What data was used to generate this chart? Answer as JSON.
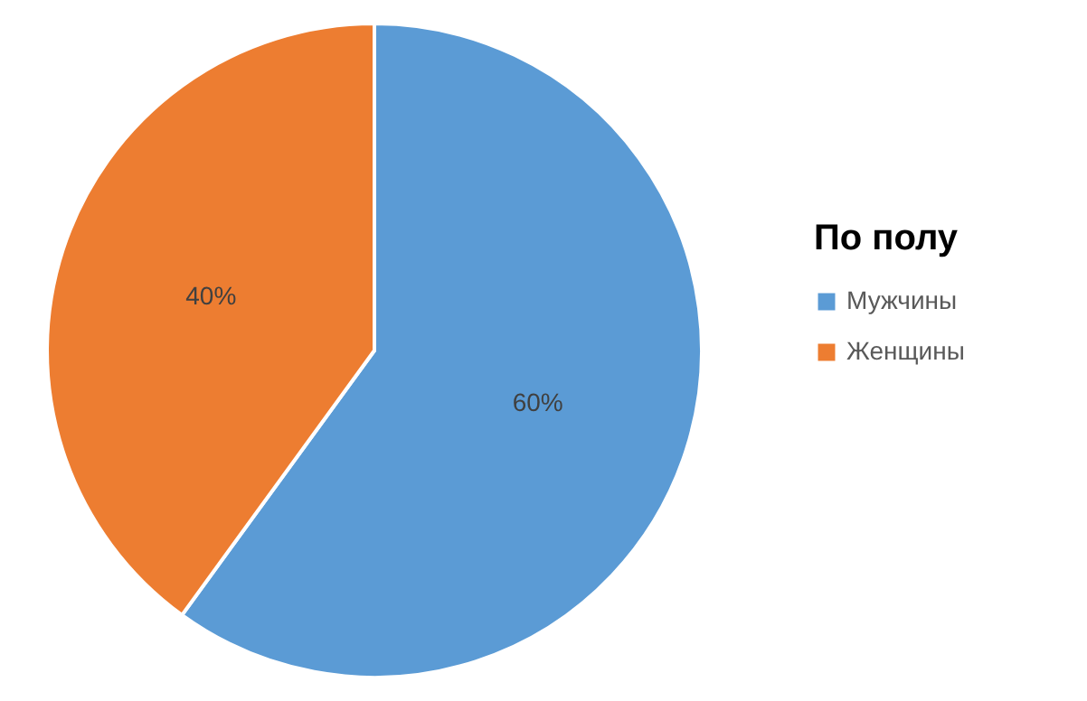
{
  "chart_data": {
    "type": "pie",
    "legend_title": "По полу",
    "categories": [
      "Мужчины",
      "Женщины"
    ],
    "values": [
      60,
      40
    ],
    "colors": [
      "#5b9bd5",
      "#ed7d31"
    ],
    "value_labels": [
      "60%",
      "40%"
    ],
    "legend": "right"
  }
}
